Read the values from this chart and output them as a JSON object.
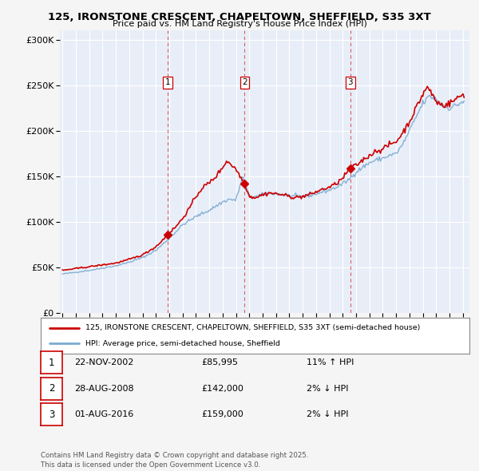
{
  "title": "125, IRONSTONE CRESCENT, CHAPELTOWN, SHEFFIELD, S35 3XT",
  "subtitle": "Price paid vs. HM Land Registry's House Price Index (HPI)",
  "bg_color": "#f5f5f5",
  "plot_bg_color": "#e8eef8",
  "grid_color": "#ffffff",
  "hpi_color": "#7aaad0",
  "price_color": "#cc0000",
  "dashed_color": "#cc0000",
  "transactions": [
    {
      "num": "1",
      "year": 2002.9,
      "price": 85995
    },
    {
      "num": "2",
      "year": 2008.65,
      "price": 142000
    },
    {
      "num": "3",
      "year": 2016.58,
      "price": 159000
    }
  ],
  "table_rows": [
    {
      "num": "1",
      "date": "22-NOV-2002",
      "price": "£85,995",
      "hpi": "11% ↑ HPI"
    },
    {
      "num": "2",
      "date": "28-AUG-2008",
      "price": "£142,000",
      "hpi": "2% ↓ HPI"
    },
    {
      "num": "3",
      "date": "01-AUG-2016",
      "price": "£159,000",
      "hpi": "2% ↓ HPI"
    }
  ],
  "legend_line1": "125, IRONSTONE CRESCENT, CHAPELTOWN, SHEFFIELD, S35 3XT (semi-detached house)",
  "legend_line2": "HPI: Average price, semi-detached house, Sheffield",
  "footer": "Contains HM Land Registry data © Crown copyright and database right 2025.\nThis data is licensed under the Open Government Licence v3.0.",
  "ylim": [
    0,
    310000
  ],
  "yticks": [
    0,
    50000,
    100000,
    150000,
    200000,
    250000,
    300000
  ]
}
